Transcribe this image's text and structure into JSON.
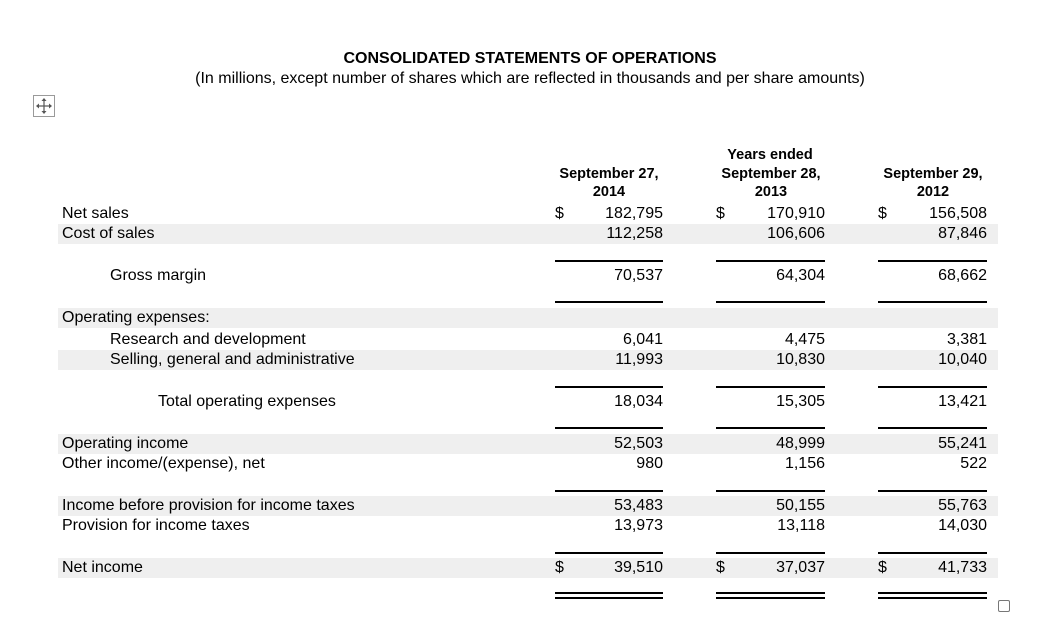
{
  "title": "CONSOLIDATED STATEMENTS OF OPERATIONS",
  "subtitle": "(In millions, except number of shares which are reflected in thousands and per share amounts)",
  "header": {
    "period_label": "Years ended",
    "col1": [
      "September 27,",
      "2014"
    ],
    "col2": [
      "September 28,",
      "2013"
    ],
    "col3": [
      "September 29,",
      "2012"
    ]
  },
  "currency_symbol": "$",
  "rows": {
    "net_sales": {
      "label": "Net sales",
      "v": [
        "182,795",
        "170,910",
        "156,508"
      ]
    },
    "cost_of_sales": {
      "label": "Cost of sales",
      "v": [
        "112,258",
        "106,606",
        "87,846"
      ]
    },
    "gross_margin": {
      "label": "Gross margin",
      "v": [
        "70,537",
        "64,304",
        "68,662"
      ]
    },
    "opex_heading": {
      "label": "Operating expenses:"
    },
    "rnd": {
      "label": "Research and development",
      "v": [
        "6,041",
        "4,475",
        "3,381"
      ]
    },
    "sga": {
      "label": "Selling, general and administrative",
      "v": [
        "11,993",
        "10,830",
        "10,040"
      ]
    },
    "total_opex": {
      "label": "Total operating expenses",
      "v": [
        "18,034",
        "15,305",
        "13,421"
      ]
    },
    "operating_income": {
      "label": "Operating income",
      "v": [
        "52,503",
        "48,999",
        "55,241"
      ]
    },
    "other_income": {
      "label": "Other income/(expense), net",
      "v": [
        "980",
        "1,156",
        "522"
      ]
    },
    "pretax_income": {
      "label": "Income before provision for income taxes",
      "v": [
        "53,483",
        "50,155",
        "55,763"
      ]
    },
    "tax_provision": {
      "label": "Provision for income taxes",
      "v": [
        "13,973",
        "13,118",
        "14,030"
      ]
    },
    "net_income": {
      "label": "Net income",
      "v": [
        "39,510",
        "37,037",
        "41,733"
      ]
    }
  }
}
